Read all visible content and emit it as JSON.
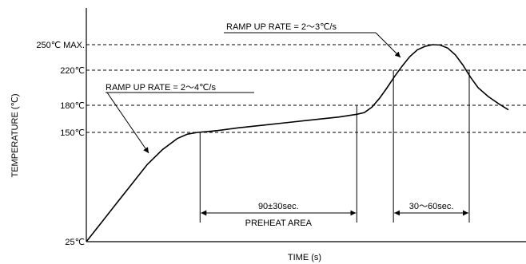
{
  "chart_data": {
    "type": "line",
    "title": "",
    "xlabel": "TIME (s)",
    "ylabel": "TEMPERATURE (℃)",
    "y_ticks": [
      {
        "value": 25,
        "label": "25℃"
      },
      {
        "value": 150,
        "label": "150℃"
      },
      {
        "value": 180,
        "label": "180℃"
      },
      {
        "value": 220,
        "label": "220℃"
      },
      {
        "value": 250,
        "label": "250℃ MAX."
      }
    ],
    "dashed_reference_temps": [
      150,
      180,
      220,
      250
    ],
    "ylim": [
      25,
      280
    ],
    "grid": false,
    "series": [
      {
        "x": [
          0,
          12,
          24,
          36,
          48,
          60,
          72,
          80,
          88,
          96,
          104,
          120,
          140,
          160,
          180,
          200,
          214,
          220,
          226,
          232,
          238,
          244,
          250,
          256,
          262,
          268,
          274,
          280,
          286,
          292,
          298,
          304,
          310,
          318,
          326,
          334
        ],
        "y": [
          25,
          47,
          69,
          91,
          113,
          130,
          143,
          148,
          150,
          151,
          152,
          155,
          158,
          161,
          164,
          167,
          170,
          172,
          178,
          188,
          200,
          213,
          225,
          236,
          244,
          248,
          250,
          249.5,
          246,
          238,
          226,
          212,
          200,
          190,
          182,
          175
        ]
      }
    ],
    "annotations": {
      "ramp_up_1": "RAMP UP RATE = 2～4℃/s",
      "ramp_up_2": "RAMP UP RATE = 2～3℃/s",
      "preheat_duration": "90±30sec.",
      "preheat_label": "PREHEAT AREA",
      "peak_duration": "30～60sec."
    },
    "markers": {
      "preheat_start_x": 90,
      "preheat_end_x": 214,
      "peak_start_x": 243,
      "peak_end_x": 303
    }
  }
}
